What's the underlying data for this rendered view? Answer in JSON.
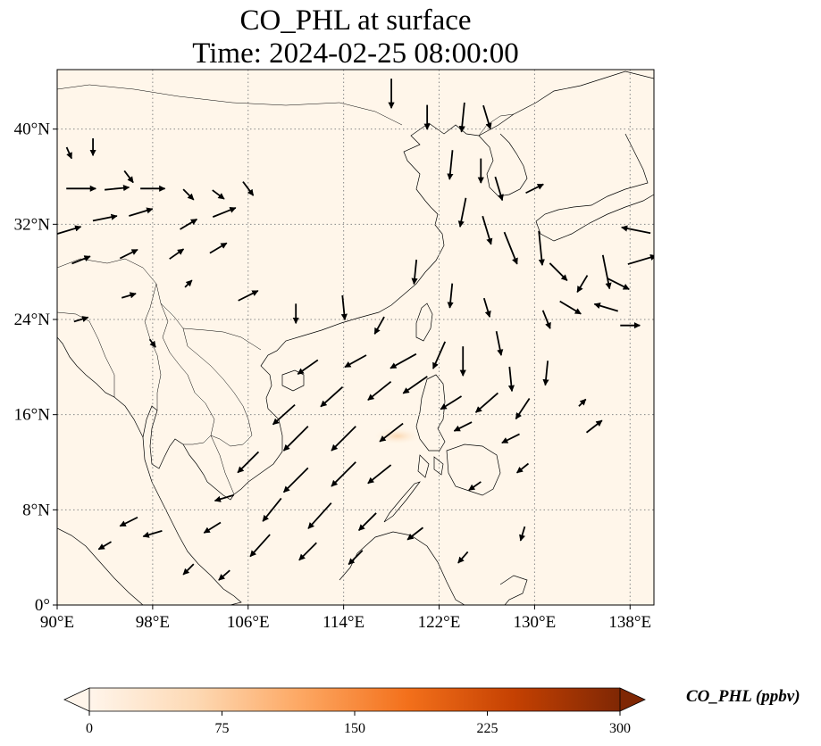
{
  "title": {
    "line1": "CO_PHL at surface",
    "line2": "Time: 2024-02-25 08:00:00"
  },
  "map": {
    "lon_range": [
      90,
      140
    ],
    "lat_range": [
      0,
      45
    ],
    "lon_ticks": [
      {
        "value": 90,
        "label": "90°E"
      },
      {
        "value": 98,
        "label": "98°E"
      },
      {
        "value": 106,
        "label": "106°E"
      },
      {
        "value": 114,
        "label": "114°E"
      },
      {
        "value": 122,
        "label": "122°E"
      },
      {
        "value": 130,
        "label": "130°E"
      },
      {
        "value": 138,
        "label": "138°E"
      }
    ],
    "lat_ticks": [
      {
        "value": 0,
        "label": "0°"
      },
      {
        "value": 8,
        "label": "8°N"
      },
      {
        "value": 16,
        "label": "16°N"
      },
      {
        "value": 24,
        "label": "24°N"
      },
      {
        "value": 32,
        "label": "32°N"
      },
      {
        "value": 40,
        "label": "40°N"
      }
    ],
    "gridlines": true,
    "background_color": "#fff6ea",
    "plume": {
      "lon": 118.5,
      "lat": 14.2,
      "level_ppbv": 30
    }
  },
  "colorbar": {
    "label": "CO_PHL (ppbv)",
    "min": 0,
    "max": 300,
    "ticks": [
      {
        "value": 0,
        "label": "0"
      },
      {
        "value": 75,
        "label": "75"
      },
      {
        "value": 150,
        "label": "150"
      },
      {
        "value": 225,
        "label": "225"
      },
      {
        "value": 300,
        "label": "300"
      }
    ],
    "colormap": [
      "#fff5eb",
      "#fdd9b4",
      "#fda762",
      "#f3701b",
      "#c54102",
      "#7f2704"
    ],
    "extend": "both"
  },
  "wind_vectors": [
    [
      91,
      38,
      0.4,
      -0.9,
      0.25
    ],
    [
      93,
      38.5,
      0,
      -1,
      0.35
    ],
    [
      96,
      36,
      0.6,
      -0.8,
      0.3
    ],
    [
      92,
      35,
      1,
      0,
      0.6
    ],
    [
      95,
      35,
      1,
      0.1,
      0.5
    ],
    [
      98,
      35,
      1,
      0,
      0.5
    ],
    [
      101,
      34.5,
      0.7,
      -0.7,
      0.3
    ],
    [
      103.5,
      34.5,
      0.8,
      -0.6,
      0.3
    ],
    [
      106,
      35,
      0.6,
      -0.8,
      0.35
    ],
    [
      91,
      31.5,
      1,
      0.3,
      0.5
    ],
    [
      94,
      32.5,
      1,
      0.2,
      0.5
    ],
    [
      97,
      33,
      1,
      0.3,
      0.5
    ],
    [
      101,
      32,
      1,
      0.6,
      0.4
    ],
    [
      104,
      33,
      1,
      0.4,
      0.5
    ],
    [
      92,
      29,
      1,
      0.4,
      0.4
    ],
    [
      96,
      29.5,
      1,
      0.5,
      0.4
    ],
    [
      100,
      29.5,
      1,
      0.7,
      0.35
    ],
    [
      103.5,
      30,
      1,
      0.6,
      0.4
    ],
    [
      106,
      26,
      1,
      0.5,
      0.45
    ],
    [
      96,
      26,
      1,
      0.3,
      0.3
    ],
    [
      101,
      27,
      0.7,
      0.7,
      0.2
    ],
    [
      92,
      24,
      1,
      0.3,
      0.3
    ],
    [
      98,
      22,
      0.6,
      -0.8,
      0.2
    ],
    [
      110,
      24.5,
      0,
      -1,
      0.4
    ],
    [
      114,
      25,
      0.1,
      -1,
      0.5
    ],
    [
      117,
      23.5,
      -0.5,
      -0.9,
      0.4
    ],
    [
      111,
      20,
      -1,
      -0.7,
      0.5
    ],
    [
      115,
      20.5,
      -0.9,
      -0.5,
      0.5
    ],
    [
      119,
      20.5,
      -0.9,
      -0.5,
      0.6
    ],
    [
      122,
      21,
      -0.4,
      -0.9,
      0.6
    ],
    [
      124,
      20.5,
      0,
      -1,
      0.6
    ],
    [
      128,
      19,
      0.1,
      -1,
      0.5
    ],
    [
      131,
      19.5,
      -0.1,
      -1,
      0.5
    ],
    [
      127,
      22,
      0.2,
      -1,
      0.5
    ],
    [
      109,
      16,
      -1,
      -0.9,
      0.6
    ],
    [
      113,
      17.5,
      -1,
      -0.9,
      0.6
    ],
    [
      117,
      18,
      -1,
      -0.8,
      0.6
    ],
    [
      120,
      18.5,
      -1,
      -0.7,
      0.6
    ],
    [
      123,
      17,
      -0.8,
      -0.5,
      0.5
    ],
    [
      126,
      17,
      -0.8,
      -0.7,
      0.6
    ],
    [
      129,
      16.5,
      -0.6,
      -0.9,
      0.5
    ],
    [
      110,
      14,
      -1,
      -1,
      0.7
    ],
    [
      114,
      14,
      -1,
      -1,
      0.7
    ],
    [
      118,
      14.5,
      -0.9,
      -0.7,
      0.6
    ],
    [
      124,
      15,
      -1,
      -0.5,
      0.4
    ],
    [
      128,
      14,
      -1,
      -0.5,
      0.4
    ],
    [
      106,
      12,
      -1,
      -1,
      0.6
    ],
    [
      110,
      10.5,
      -1,
      -1,
      0.7
    ],
    [
      114,
      11,
      -1,
      -1,
      0.7
    ],
    [
      117,
      11,
      -1,
      -0.8,
      0.6
    ],
    [
      104,
      9,
      -1,
      -0.3,
      0.4
    ],
    [
      108,
      8,
      -0.8,
      -1,
      0.6
    ],
    [
      112,
      7.5,
      -0.9,
      -1,
      0.7
    ],
    [
      116,
      7,
      -1,
      -1,
      0.5
    ],
    [
      103,
      6.5,
      -0.8,
      -0.5,
      0.4
    ],
    [
      107,
      5,
      -0.9,
      -1,
      0.6
    ],
    [
      111,
      4.5,
      -1,
      -1,
      0.5
    ],
    [
      115,
      4,
      -1,
      -1,
      0.4
    ],
    [
      96,
      7,
      -1,
      -0.5,
      0.4
    ],
    [
      94,
      5,
      -1,
      -0.6,
      0.3
    ],
    [
      98,
      6,
      -1,
      -0.3,
      0.4
    ],
    [
      101,
      3,
      -0.8,
      -0.8,
      0.3
    ],
    [
      104,
      2.5,
      -0.8,
      -0.7,
      0.3
    ],
    [
      120,
      6,
      -0.9,
      -0.7,
      0.4
    ],
    [
      124,
      4,
      -0.7,
      -0.8,
      0.3
    ],
    [
      129,
      6,
      -0.3,
      -1,
      0.3
    ],
    [
      125,
      10,
      -1,
      -0.7,
      0.3
    ],
    [
      129,
      11.5,
      -1,
      -0.8,
      0.3
    ],
    [
      118,
      43,
      0,
      -1,
      0.6
    ],
    [
      121,
      41,
      0,
      -1,
      0.5
    ],
    [
      124,
      41,
      -0.1,
      -1,
      0.6
    ],
    [
      126,
      41,
      0.3,
      -1,
      0.5
    ],
    [
      123,
      37,
      -0.1,
      -1,
      0.6
    ],
    [
      125.5,
      36.5,
      0,
      -1,
      0.5
    ],
    [
      127,
      35,
      0.3,
      -1,
      0.5
    ],
    [
      130,
      35,
      1,
      0.5,
      0.4
    ],
    [
      124,
      33,
      -0.2,
      -1,
      0.6
    ],
    [
      126,
      31.5,
      0.3,
      -1,
      0.6
    ],
    [
      128,
      30,
      0.4,
      -1,
      0.7
    ],
    [
      130.5,
      30,
      0.1,
      -1,
      0.7
    ],
    [
      132,
      28,
      1,
      -1,
      0.5
    ],
    [
      134,
      27,
      -0.6,
      -1,
      0.4
    ],
    [
      136,
      28,
      0.2,
      -1,
      0.7
    ],
    [
      137,
      27,
      1,
      -0.5,
      0.5
    ],
    [
      138.5,
      31.5,
      -1,
      0.2,
      0.6
    ],
    [
      139,
      29,
      1,
      0.3,
      0.6
    ],
    [
      136,
      25,
      -1,
      0.3,
      0.5
    ],
    [
      138,
      23.5,
      1,
      0,
      0.4
    ],
    [
      133,
      25,
      1,
      -0.6,
      0.5
    ],
    [
      131,
      24,
      0.4,
      -1,
      0.4
    ],
    [
      126,
      25,
      0.3,
      -1,
      0.4
    ],
    [
      123,
      26,
      -0.1,
      -1,
      0.5
    ],
    [
      120,
      28,
      -0.1,
      -1,
      0.5
    ],
    [
      135,
      15,
      0.9,
      0.7,
      0.4
    ],
    [
      134,
      17,
      0.5,
      0.5,
      0.2
    ]
  ]
}
